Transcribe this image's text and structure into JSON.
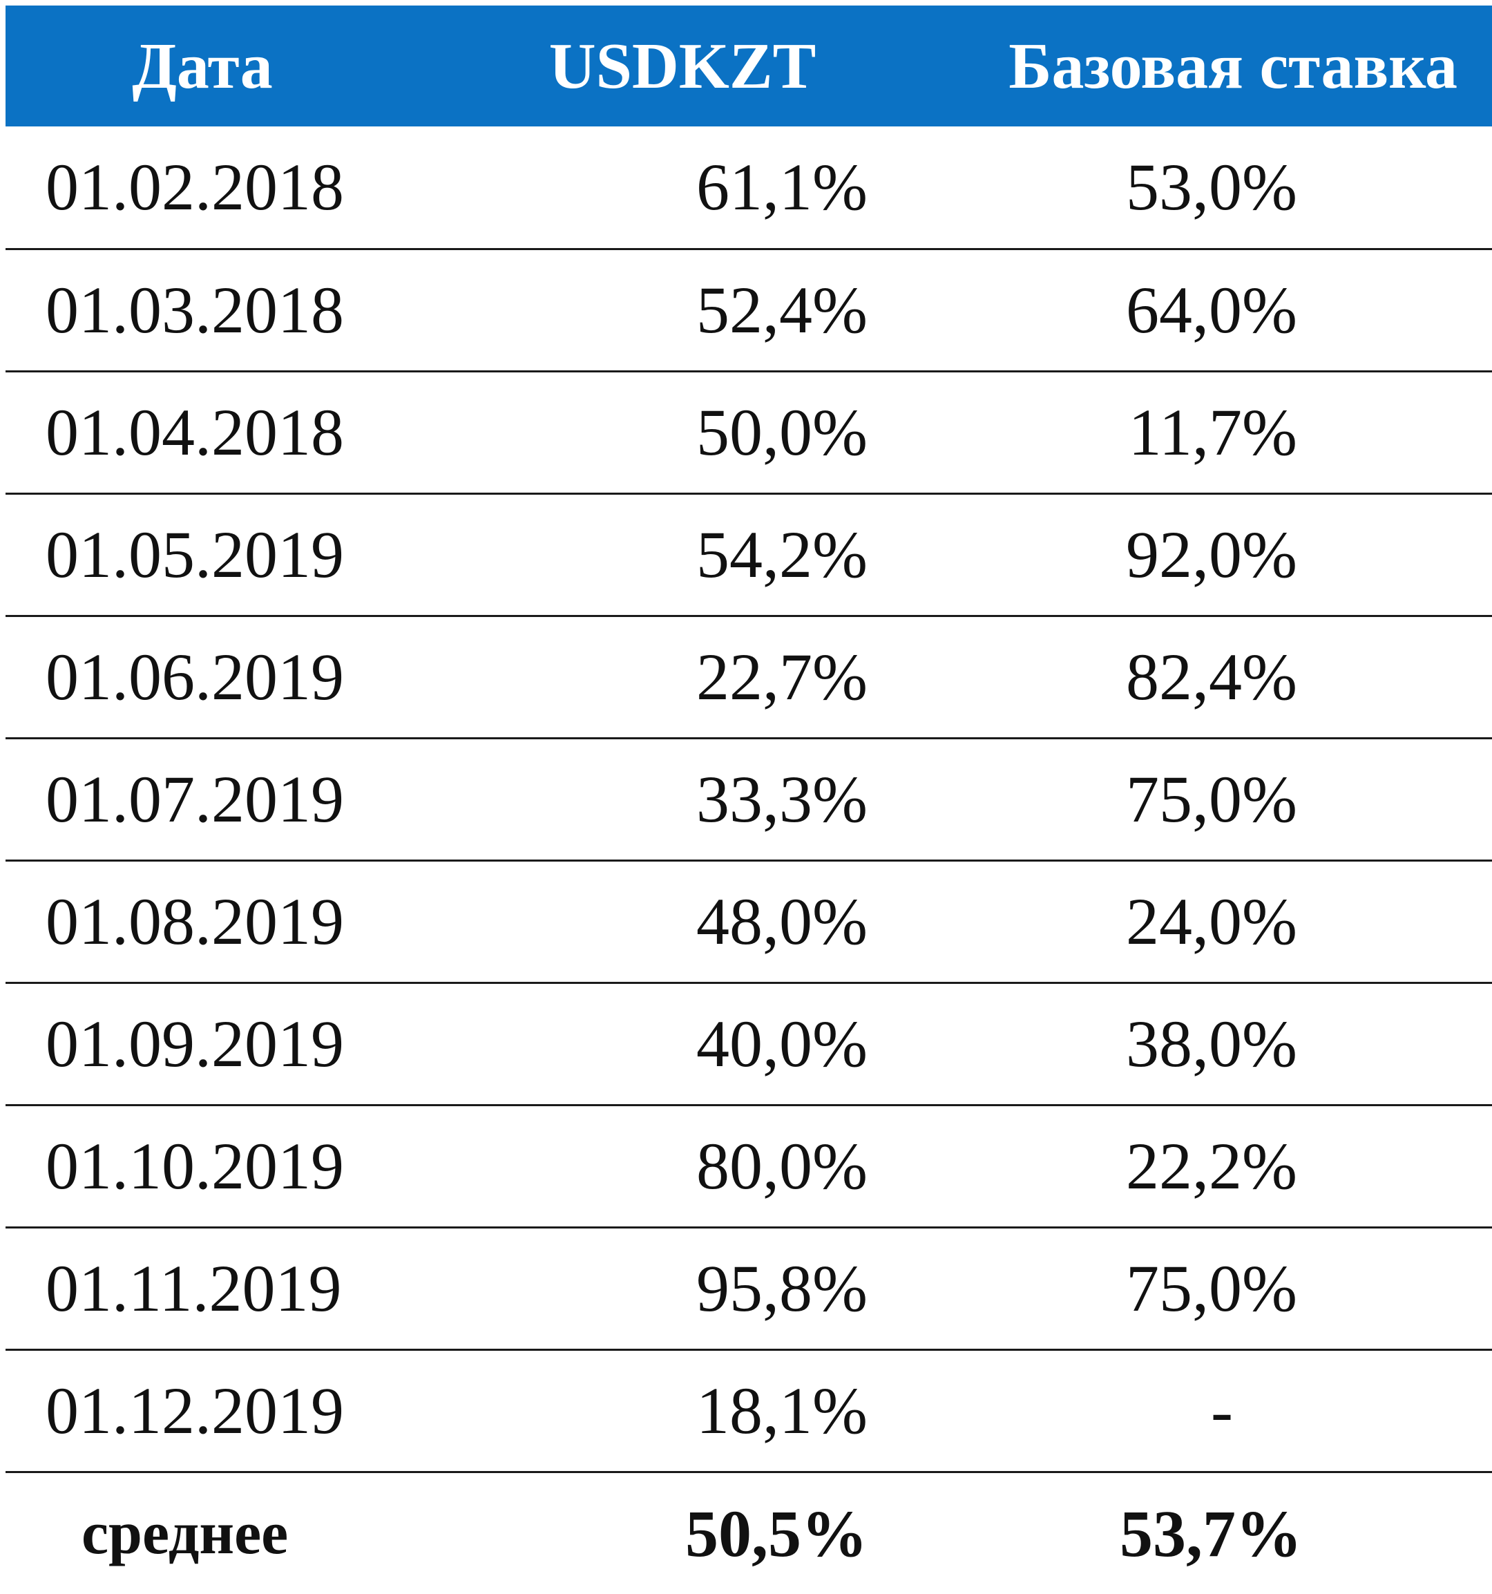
{
  "table": {
    "headers": [
      "Дата",
      "USDKZT",
      "Базовая ставка"
    ],
    "rows": [
      {
        "date": "01.02.2018",
        "usdkzt": "61,1%",
        "base_rate": "53,0%"
      },
      {
        "date": "01.03.2018",
        "usdkzt": "52,4%",
        "base_rate": "64,0%"
      },
      {
        "date": "01.04.2018",
        "usdkzt": "50,0%",
        "base_rate": "11,7%"
      },
      {
        "date": "01.05.2019",
        "usdkzt": "54,2%",
        "base_rate": "92,0%"
      },
      {
        "date": "01.06.2019",
        "usdkzt": "22,7%",
        "base_rate": "82,4%"
      },
      {
        "date": "01.07.2019",
        "usdkzt": "33,3%",
        "base_rate": "75,0%"
      },
      {
        "date": "01.08.2019",
        "usdkzt": "48,0%",
        "base_rate": "24,0%"
      },
      {
        "date": "01.09.2019",
        "usdkzt": "40,0%",
        "base_rate": "38,0%"
      },
      {
        "date": "01.10.2019",
        "usdkzt": "80,0%",
        "base_rate": "22,2%"
      },
      {
        "date": "01.11.2019",
        "usdkzt": "95,8%",
        "base_rate": "75,0%"
      },
      {
        "date": "01.12.2019",
        "usdkzt": "18,1%",
        "base_rate": "-"
      }
    ],
    "summary": {
      "label": "среднее",
      "usdkzt": "50,5%",
      "base_rate": "53,7%"
    }
  },
  "colors": {
    "header_background": "#0b72c4",
    "header_text": "#ffffff",
    "row_divider": "#1a1a1a"
  }
}
